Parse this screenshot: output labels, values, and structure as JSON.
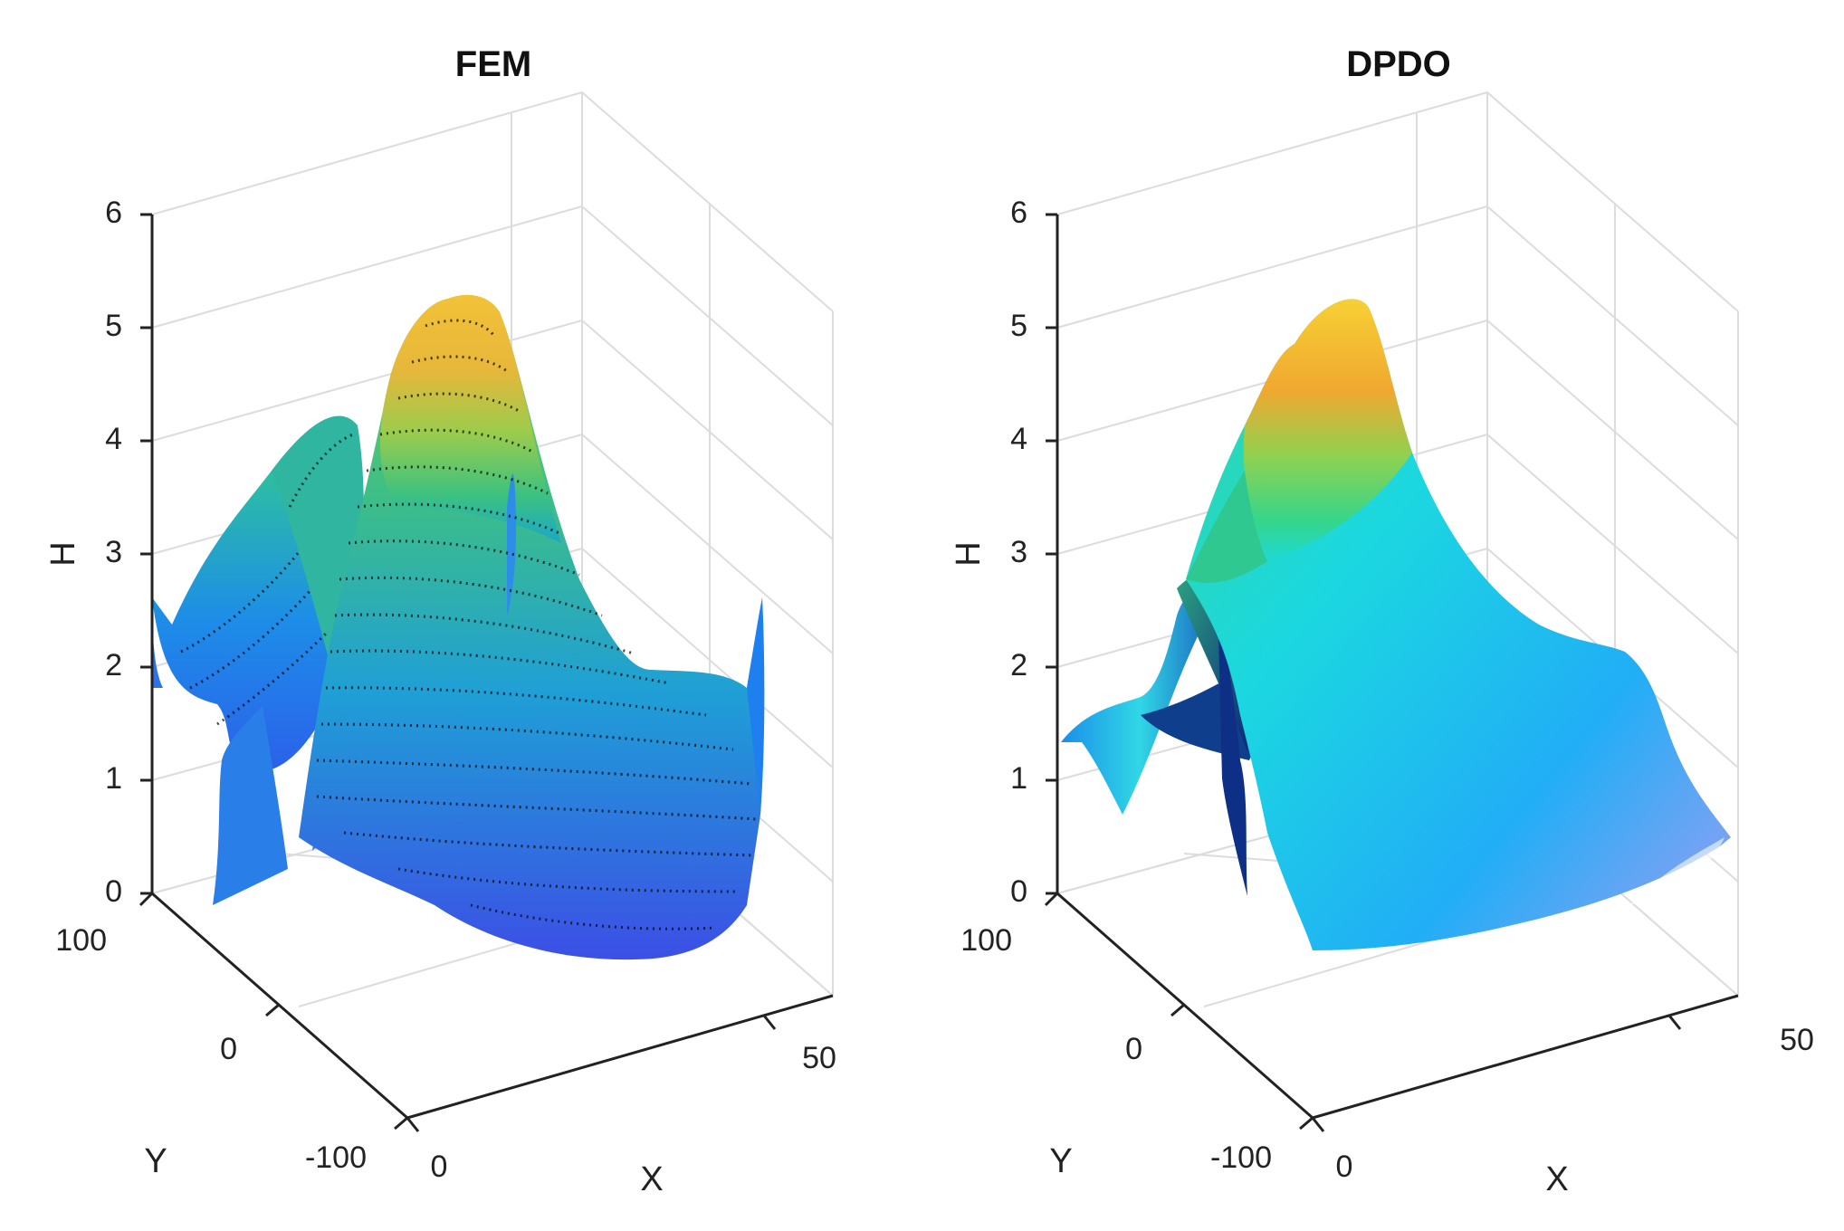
{
  "chart_data": [
    {
      "type": "surface",
      "title": "FEM",
      "xlabel": "X",
      "ylabel": "Y",
      "zlabel": "H",
      "xlim": [
        0,
        60
      ],
      "ylim": [
        -100,
        100
      ],
      "zlim": [
        0,
        6
      ],
      "xticks": [
        "0",
        "50"
      ],
      "yticks": [
        "100",
        "0",
        "-100"
      ],
      "zticks": [
        "0",
        "1",
        "2",
        "3",
        "4",
        "5",
        "6"
      ],
      "shading": "faceted-mesh",
      "colormap": [
        "#3d3fe0",
        "#1f78f5",
        "#17b8d8",
        "#35c28a",
        "#9dcf4a",
        "#f0b830"
      ],
      "features": [
        {
          "name": "central peak",
          "x": 30,
          "y": 0,
          "h": 5.0
        },
        {
          "name": "left ridge peak",
          "x": 10,
          "y": 0,
          "h": 3.6
        },
        {
          "name": "edge spike left",
          "x": 0,
          "y": 100,
          "h": 2.5
        },
        {
          "name": "edge spike right",
          "x": 60,
          "y": -100,
          "h": 2.6
        },
        {
          "name": "back spike",
          "x": 50,
          "y": 100,
          "h": 3.0
        },
        {
          "name": "plateau",
          "x": 45,
          "y": -20,
          "h": 2.0
        },
        {
          "name": "front trough",
          "x": 40,
          "y": -60,
          "h": 0.1
        }
      ]
    },
    {
      "type": "surface",
      "title": "DPDO",
      "xlabel": "X",
      "ylabel": "Y",
      "zlabel": "H",
      "xlim": [
        0,
        60
      ],
      "ylim": [
        -100,
        100
      ],
      "zlim": [
        0,
        6
      ],
      "xticks": [
        "0",
        "50"
      ],
      "yticks": [
        "100",
        "0",
        "-100"
      ],
      "zticks": [
        "0",
        "1",
        "2",
        "3",
        "4",
        "5",
        "6"
      ],
      "shading": "interp-lit",
      "colormap": [
        "#7f7ff0",
        "#22aef8",
        "#1fd7e8",
        "#36d07a",
        "#c9c840",
        "#f5b020"
      ],
      "features": [
        {
          "name": "central peak",
          "x": 30,
          "y": 0,
          "h": 5.0
        },
        {
          "name": "left fold",
          "x": 10,
          "y": 0,
          "h": 2.7
        },
        {
          "name": "left edge",
          "x": 0,
          "y": 100,
          "h": 1.4
        },
        {
          "name": "plateau",
          "x": 45,
          "y": -20,
          "h": 2.0
        },
        {
          "name": "right edge",
          "x": 60,
          "y": -100,
          "h": 0.5
        },
        {
          "name": "front trough",
          "x": 40,
          "y": -60,
          "h": 0.4
        }
      ]
    }
  ]
}
